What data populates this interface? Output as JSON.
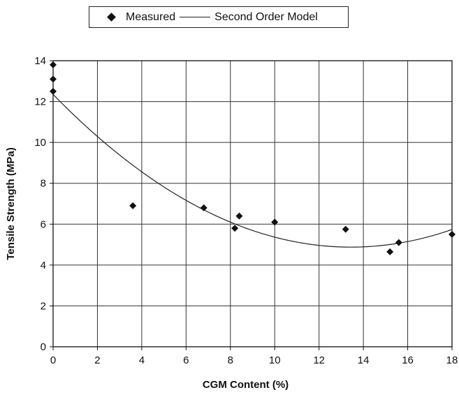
{
  "chart_data": {
    "type": "scatter",
    "xlabel": "CGM Content (%)",
    "ylabel": "Tensile Strength (MPa)",
    "xlim": [
      0,
      18
    ],
    "ylim": [
      0,
      14
    ],
    "xticks": [
      0,
      2,
      4,
      6,
      8,
      10,
      12,
      14,
      16,
      18
    ],
    "xtick_labels": [
      "0",
      "2",
      "4",
      "6",
      "8",
      "10",
      "12",
      "14",
      "16",
      "18"
    ],
    "yticks": [
      0,
      2,
      4,
      6,
      8,
      10,
      12,
      14
    ],
    "ytick_labels": [
      "0",
      "2",
      "4",
      "6",
      "8",
      "10",
      "12",
      "14"
    ],
    "grid": true,
    "legend": {
      "position": "top",
      "entries": [
        "Measured",
        "Second Order Model"
      ]
    },
    "series": [
      {
        "name": "Measured",
        "type": "scatter",
        "marker": "diamond",
        "color": "#111111",
        "points": [
          {
            "x": 0,
            "y": 13.8
          },
          {
            "x": 0,
            "y": 13.1
          },
          {
            "x": 0,
            "y": 12.5
          },
          {
            "x": 3.6,
            "y": 6.9
          },
          {
            "x": 6.8,
            "y": 6.8
          },
          {
            "x": 8.2,
            "y": 5.8
          },
          {
            "x": 8.4,
            "y": 6.4
          },
          {
            "x": 10,
            "y": 6.1
          },
          {
            "x": 13.2,
            "y": 5.75
          },
          {
            "x": 15.2,
            "y": 4.65
          },
          {
            "x": 15.6,
            "y": 5.1
          },
          {
            "x": 18,
            "y": 5.5
          }
        ]
      },
      {
        "name": "Second Order Model",
        "type": "line",
        "color": "#222222",
        "equation": {
          "a": 0.0414,
          "b": -1.1125,
          "c": 12.35
        },
        "x_range": [
          0,
          18
        ]
      }
    ]
  }
}
